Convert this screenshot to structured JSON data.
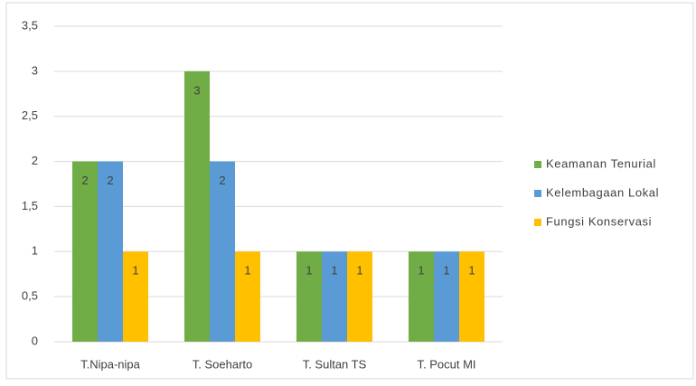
{
  "chart_data": {
    "type": "bar",
    "categories": [
      "T.Nipa-nipa",
      "T. Soeharto",
      "T. Sultan TS",
      "T. Pocut MI"
    ],
    "series": [
      {
        "name": "Keamanan Tenurial",
        "color": "#70ad47",
        "values": [
          2,
          3,
          1,
          1
        ]
      },
      {
        "name": "Kelembagaan Lokal",
        "color": "#5b9bd5",
        "values": [
          2,
          2,
          1,
          1
        ]
      },
      {
        "name": "Fungsi Konservasi",
        "color": "#ffc000",
        "values": [
          1,
          1,
          1,
          1
        ]
      }
    ],
    "ylim": [
      0,
      3.5
    ],
    "yticks": [
      0,
      {
        "value": 0.5,
        "label": "0,5"
      },
      1,
      {
        "value": 1.5,
        "label": "1,5"
      },
      2,
      {
        "value": 2.5,
        "label": "2,5"
      },
      3,
      {
        "value": 3.5,
        "label": "3,5"
      }
    ],
    "grid": true,
    "legend": "right",
    "data_labels": true
  }
}
